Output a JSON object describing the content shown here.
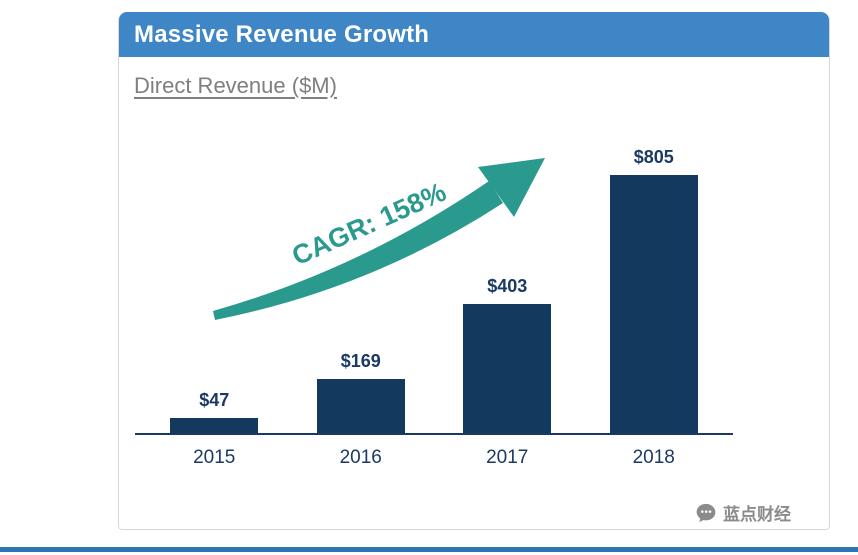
{
  "card": {
    "title": "Massive Revenue Growth",
    "subtitle": "Direct Revenue ($M)"
  },
  "chart_data": {
    "type": "bar",
    "title": "Massive Revenue Growth",
    "subtitle": "Direct Revenue ($M)",
    "categories": [
      "2015",
      "2016",
      "2017",
      "2018"
    ],
    "values": [
      47,
      169,
      403,
      805
    ],
    "value_labels": [
      "$47",
      "$169",
      "$403",
      "$805"
    ],
    "unit": "$M",
    "annotation": "CAGR: 158%",
    "ylim": [
      0,
      850
    ],
    "grid": false,
    "legend": false,
    "colors": {
      "bar": "#14395E",
      "header": "#3E86C5",
      "accent": "#2B9A8E",
      "label": "#1B3A63",
      "subtitle_gray": "#7F7F7F",
      "bottom_line": "#2E75B6"
    }
  },
  "watermark": {
    "text": "蓝点财经"
  }
}
